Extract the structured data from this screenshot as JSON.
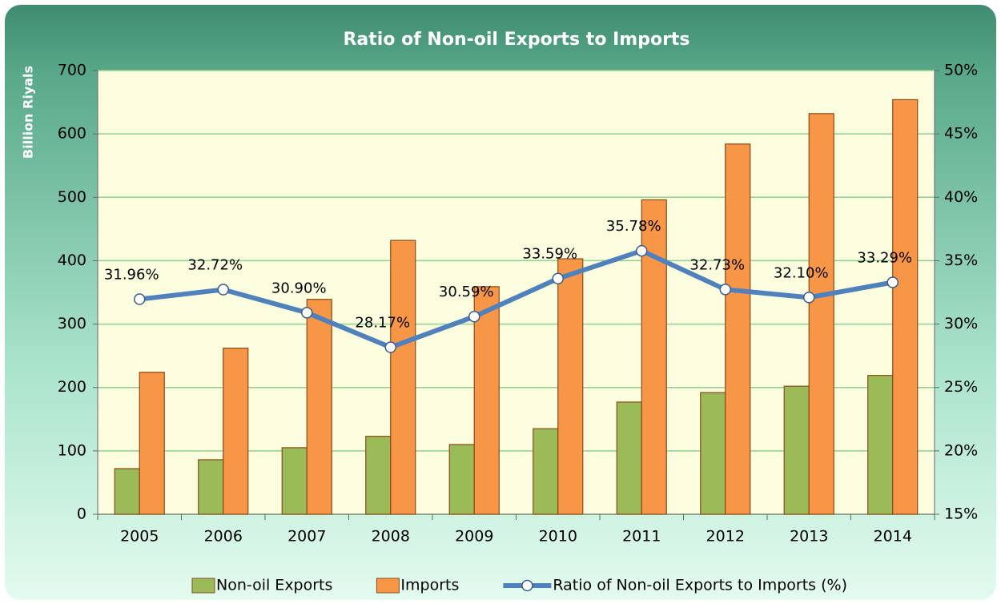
{
  "chart_data": {
    "type": "bar_line",
    "title": "Ratio of Non-oil Exports to Imports",
    "y_label": "Billion Riyals",
    "categories": [
      "2005",
      "2006",
      "2007",
      "2008",
      "2009",
      "2010",
      "2011",
      "2012",
      "2013",
      "2014"
    ],
    "series": [
      {
        "name": "Non-oil Exports",
        "type": "bar",
        "color": "#9bbb59",
        "values": [
          72,
          86,
          105,
          123,
          110,
          135,
          177,
          192,
          202,
          219
        ]
      },
      {
        "name": "Imports",
        "type": "bar",
        "color": "#f79646",
        "values": [
          224,
          262,
          339,
          432,
          359,
          403,
          496,
          584,
          632,
          654
        ]
      },
      {
        "name": "Ratio of Non-oil Exports to Imports (%)",
        "type": "line",
        "axis": "y2",
        "color": "#4f81bd",
        "values": [
          31.96,
          32.72,
          30.9,
          28.17,
          30.59,
          33.59,
          35.78,
          32.73,
          32.1,
          33.29
        ],
        "value_labels": [
          "31.96%",
          "32.72%",
          "30.90%",
          "28.17%",
          "30.59%",
          "33.59%",
          "35.78%",
          "32.73%",
          "32.10%",
          "33.29%"
        ]
      }
    ],
    "ylim": [
      0,
      700
    ],
    "yticks": [
      0,
      100,
      200,
      300,
      400,
      500,
      600,
      700
    ],
    "y2lim": [
      15,
      50
    ],
    "y2ticks": [
      {
        "value": 15,
        "label": "15%"
      },
      {
        "value": 20,
        "label": "20%"
      },
      {
        "value": 25,
        "label": "25%"
      },
      {
        "value": 30,
        "label": "30%"
      },
      {
        "value": 35,
        "label": "35%"
      },
      {
        "value": 40,
        "label": "40%"
      },
      {
        "value": 45,
        "label": "45%"
      },
      {
        "value": 50,
        "label": "50%"
      }
    ],
    "grid": true,
    "legend": "bottom"
  }
}
